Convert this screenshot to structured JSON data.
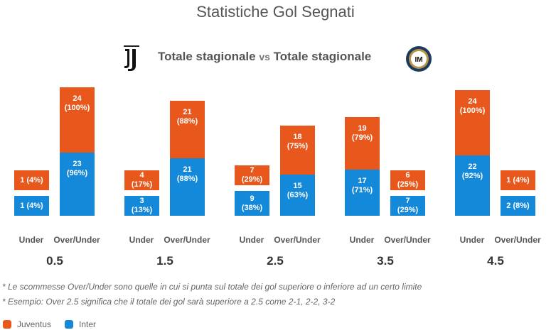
{
  "title": "Statistiche Gol Segnati",
  "subtitle": {
    "left": "Totale stagionale",
    "vs": "vs",
    "right": "Totale stagionale"
  },
  "logos": {
    "left": "juventus-logo",
    "right": "inter-logo"
  },
  "notes": [
    "* Le scommesse Over/Under sono quelle in cui si punta sul totale dei gol superiore o inferiore ad un certo limite",
    "* Esempio: Over 2.5 significa che il totale dei gol sarà superiore a 2.5 come 2-1, 2-2, 3-2"
  ],
  "chart_data": {
    "type": "bar",
    "stacked": true,
    "groups": [
      "0.5",
      "1.5",
      "2.5",
      "3.5",
      "4.5"
    ],
    "bar_labels": [
      "Under",
      "Over/Under"
    ],
    "series": [
      {
        "name": "Juventus",
        "color": "#e8581c",
        "values": [
          [
            1,
            24
          ],
          [
            4,
            21
          ],
          [
            7,
            18
          ],
          [
            19,
            6
          ],
          [
            24,
            1
          ]
        ],
        "labels": [
          [
            "1 (4%)",
            "24 (100%)"
          ],
          [
            "4 (17%)",
            "21 (88%)"
          ],
          [
            "7 (29%)",
            "18 (75%)"
          ],
          [
            "19 (79%)",
            "6 (25%)"
          ],
          [
            "24 (100%)",
            "1 (4%)"
          ]
        ]
      },
      {
        "name": "Inter",
        "color": "#1589d9",
        "values": [
          [
            1,
            23
          ],
          [
            3,
            21
          ],
          [
            9,
            15
          ],
          [
            17,
            7
          ],
          [
            22,
            2
          ]
        ],
        "labels": [
          [
            "1 (4%)",
            "23 (96%)"
          ],
          [
            "3 (13%)",
            "21 (88%)"
          ],
          [
            "9 (38%)",
            "15 (63%)"
          ],
          [
            "17 (71%)",
            "7 (29%)"
          ],
          [
            "22 (92%)",
            "2 (8%)"
          ]
        ]
      }
    ],
    "legend": "bottom-left"
  }
}
